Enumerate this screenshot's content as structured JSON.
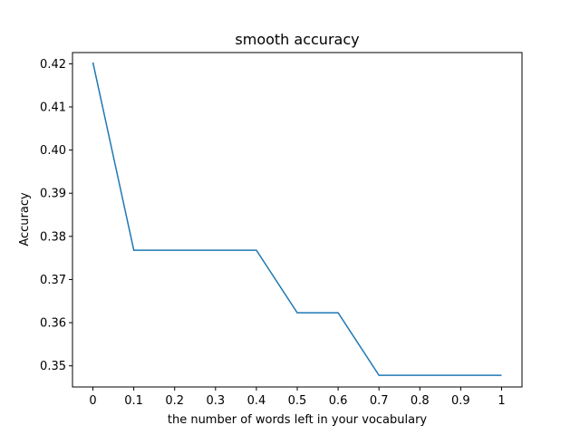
{
  "chart_data": {
    "type": "line",
    "title": "smooth accuracy",
    "xlabel": "the number of words left in your vocabulary",
    "ylabel": "Accuracy",
    "x_ticks": [
      "0",
      "0.1",
      "0.2",
      "0.3",
      "0.4",
      "0.5",
      "0.6",
      "0.7",
      "0.8",
      "0.9",
      "1"
    ],
    "x_tick_values": [
      0,
      0.1,
      0.2,
      0.3,
      0.4,
      0.5,
      0.6,
      0.7,
      0.8,
      0.9,
      1
    ],
    "y_ticks": [
      "0.35",
      "0.36",
      "0.37",
      "0.38",
      "0.39",
      "0.40",
      "0.41",
      "0.42"
    ],
    "y_tick_values": [
      0.35,
      0.36,
      0.37,
      0.38,
      0.39,
      0.4,
      0.41,
      0.42
    ],
    "xlim": [
      -0.05,
      1.05
    ],
    "ylim": [
      0.3451,
      0.4226
    ],
    "grid": false,
    "series": [
      {
        "color": "#1f77b4",
        "x": [
          0,
          0.1,
          0.2,
          0.3,
          0.4,
          0.5,
          0.6,
          0.7,
          0.8,
          0.9,
          1
        ],
        "y": [
          0.4203,
          0.3768,
          0.3768,
          0.3768,
          0.3768,
          0.3623,
          0.3623,
          0.3478,
          0.3478,
          0.3478,
          0.3478
        ]
      }
    ]
  }
}
